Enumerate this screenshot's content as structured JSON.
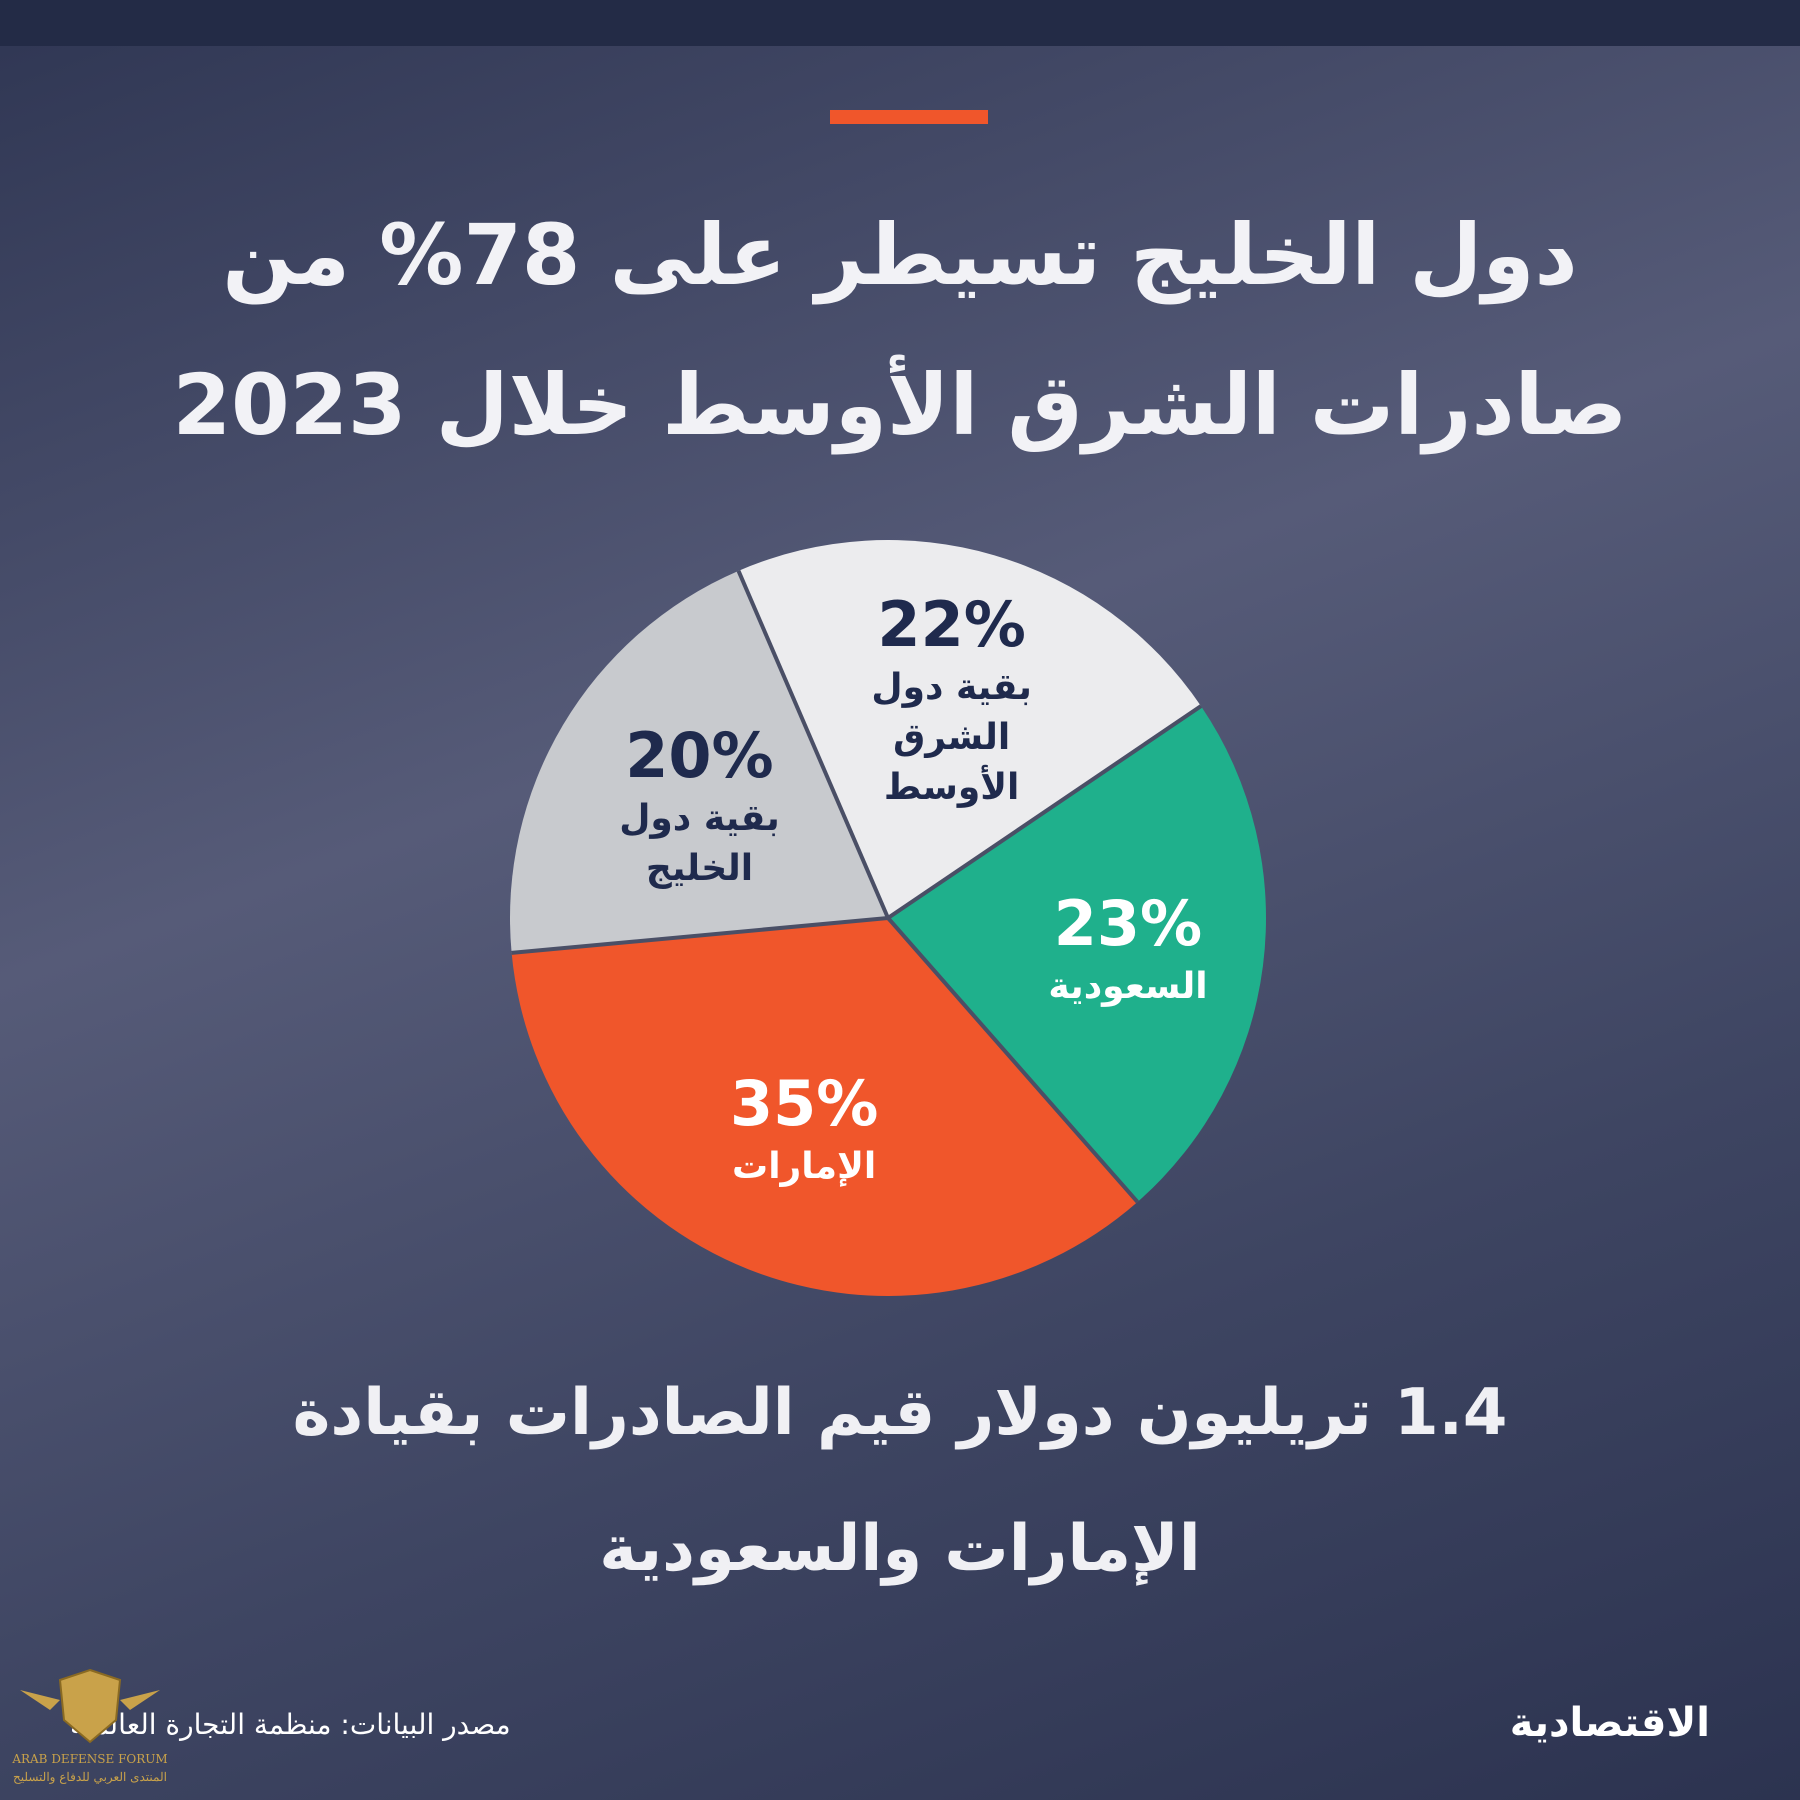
{
  "title": "دول الخليج تسيطر على 78% من صادرات الشرق الأوسط خلال 2023",
  "subtitle": "1.4 تريليون دولار قيم الصادرات بقيادة الإمارات والسعودية",
  "source": "مصدر البيانات: منظمة التجارة العالمية",
  "brand": "الاقتصادية",
  "watermark": {
    "text_en": "ARAB DEFENSE FORUM",
    "text_ar": "المنتدى العربي للدفاع والتسليح"
  },
  "colors": {
    "accent": "#f0562b",
    "saudi": "#1fb08c",
    "uae": "#f0562b",
    "rest_me": "#ececee",
    "rest_gulf": "#c8cace",
    "dark_text": "#1f2a4d"
  },
  "chart_data": {
    "type": "pie",
    "slices": [
      {
        "label": "السعودية",
        "value": 23,
        "value_label": "23%",
        "color": "#1fb08c",
        "text_color": "#ffffff"
      },
      {
        "label": "الإمارات",
        "value": 35,
        "value_label": "35%",
        "color": "#f0562b",
        "text_color": "#ffffff"
      },
      {
        "label": "بقية دول\nالخليج",
        "value": 20,
        "value_label": "20%",
        "color": "#c8cace",
        "text_color": "#1f2a4d"
      },
      {
        "label": "بقية دول\nالشرق\nالأوسط",
        "value": 22,
        "value_label": "22%",
        "color": "#ececee",
        "text_color": "#1f2a4d"
      }
    ]
  }
}
